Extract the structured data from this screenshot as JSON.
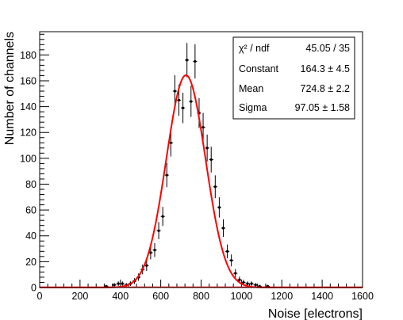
{
  "chart_data": {
    "type": "scatter",
    "xlabel": "Noise [electrons]",
    "ylabel": "Number of channels",
    "xlim": [
      0,
      1600
    ],
    "ylim": [
      0,
      198
    ],
    "x_ticks": [
      0,
      200,
      400,
      600,
      800,
      1000,
      1200,
      1400,
      1600
    ],
    "y_ticks": [
      0,
      20,
      40,
      60,
      80,
      100,
      120,
      140,
      160,
      180
    ],
    "x_minor_step": 40,
    "y_minor_step": 4,
    "grid": false,
    "legend": "stats box top-right",
    "histogram": {
      "bin_width": 20,
      "points": [
        {
          "x": 330,
          "y": 1
        },
        {
          "x": 370,
          "y": 2
        },
        {
          "x": 390,
          "y": 3
        },
        {
          "x": 410,
          "y": 3
        },
        {
          "x": 430,
          "y": 2
        },
        {
          "x": 450,
          "y": 3
        },
        {
          "x": 470,
          "y": 5
        },
        {
          "x": 490,
          "y": 8
        },
        {
          "x": 510,
          "y": 14
        },
        {
          "x": 530,
          "y": 17
        },
        {
          "x": 550,
          "y": 27
        },
        {
          "x": 570,
          "y": 29
        },
        {
          "x": 590,
          "y": 44
        },
        {
          "x": 610,
          "y": 55
        },
        {
          "x": 630,
          "y": 87
        },
        {
          "x": 650,
          "y": 112
        },
        {
          "x": 670,
          "y": 152
        },
        {
          "x": 690,
          "y": 145
        },
        {
          "x": 710,
          "y": 139
        },
        {
          "x": 730,
          "y": 176
        },
        {
          "x": 750,
          "y": 144
        },
        {
          "x": 770,
          "y": 175
        },
        {
          "x": 790,
          "y": 135
        },
        {
          "x": 810,
          "y": 124
        },
        {
          "x": 830,
          "y": 108
        },
        {
          "x": 850,
          "y": 99
        },
        {
          "x": 870,
          "y": 78
        },
        {
          "x": 890,
          "y": 62
        },
        {
          "x": 910,
          "y": 46
        },
        {
          "x": 930,
          "y": 28
        },
        {
          "x": 950,
          "y": 21
        },
        {
          "x": 970,
          "y": 11
        },
        {
          "x": 990,
          "y": 6
        },
        {
          "x": 1010,
          "y": 4
        },
        {
          "x": 1030,
          "y": 3
        },
        {
          "x": 1050,
          "y": 3
        },
        {
          "x": 1070,
          "y": 2
        },
        {
          "x": 1090,
          "y": 1
        },
        {
          "x": 1130,
          "y": 1
        }
      ]
    },
    "fit": {
      "function": "gaus",
      "constant": 164.3,
      "mean": 724.8,
      "sigma": 97.05,
      "color": "#ff0000"
    },
    "stats_box": {
      "rows": [
        {
          "label": "χ² / ndf",
          "value": "45.05 / 35"
        },
        {
          "label": "Constant",
          "value": "164.3 ± 4.5"
        },
        {
          "label": "Mean",
          "value": "724.8 ± 2.2"
        },
        {
          "label": "Sigma",
          "value": "97.05 ± 1.58"
        }
      ]
    },
    "colors": {
      "data_points": "#000000",
      "fit_line": "#ff0000",
      "zero_line": "#ff0000"
    }
  }
}
